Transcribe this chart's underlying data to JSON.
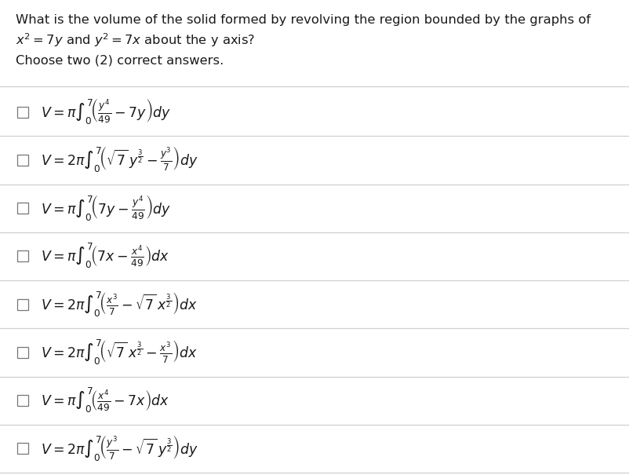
{
  "title_line1": "What is the volume of the solid formed by revolving the region bounded by the graphs of",
  "title_line2_plain": "x² = 7y and y² = 7x about the y axis?",
  "subtitle": "Choose two (2) correct answers.",
  "bg_color": "#ffffff",
  "text_color": "#1a1a1a",
  "checkbox_color": "#ffffff",
  "checkbox_border": "#777777",
  "line_color": "#d0d0d0",
  "title_fontsize": 11.8,
  "option_fontsize": 12.5,
  "subtitle_fontsize": 11.8,
  "math_exprs": [
    "$V = \\pi\\int_0^7\\!\\left(\\frac{y^4}{49} - 7y\\right)dy$",
    "$V = 2\\pi\\int_0^7\\!\\left(\\sqrt{7}\\,y^{\\frac{3}{2}} - \\frac{y^3}{7}\\right)dy$",
    "$V = \\pi\\int_0^7\\!\\left(7y - \\frac{y^4}{49}\\right)dy$",
    "$V = \\pi\\int_0^7\\!\\left(7x - \\frac{x^4}{49}\\right)dx$",
    "$V = 2\\pi\\int_0^7\\!\\left(\\frac{x^3}{7} - \\sqrt{7}\\,x^{\\frac{3}{2}}\\right)dx$",
    "$V = 2\\pi\\int_0^7\\!\\left(\\sqrt{7}\\,x^{\\frac{3}{2}} - \\frac{x^3}{7}\\right)dx$",
    "$V = \\pi\\int_0^7\\!\\left(\\frac{x^4}{49} - 7x\\right)dx$",
    "$V = 2\\pi\\int_0^7\\!\\left(\\frac{y^3}{7} - \\sqrt{7}\\,y^{\\frac{3}{2}}\\right)dy$"
  ]
}
